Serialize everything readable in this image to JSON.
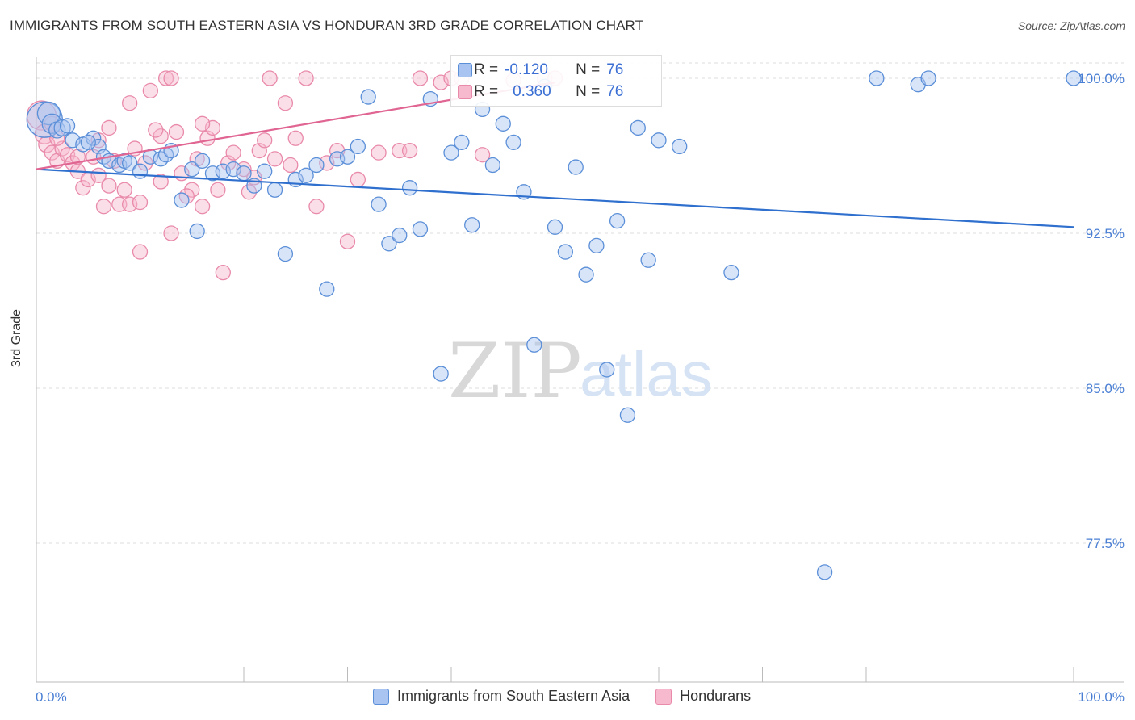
{
  "title": "IMMIGRANTS FROM SOUTH EASTERN ASIA VS HONDURAN 3RD GRADE CORRELATION CHART",
  "source": "Source: ZipAtlas.com",
  "watermark": {
    "zip": "ZIP",
    "atlas": "atlas"
  },
  "colors": {
    "blue_fill": "#a9c4f0",
    "blue_stroke": "#5b8fd8",
    "blue_line": "#2f6fce",
    "pink_fill": "#f6b9cd",
    "pink_stroke": "#e98aab",
    "pink_line": "#e06592",
    "axis_text": "#4a7fd4",
    "grid": "#dddddd"
  },
  "stats": {
    "series1": {
      "r_label": "R =",
      "r_value": "-0.120",
      "n_label": "N =",
      "n_value": "76"
    },
    "series2": {
      "r_label": "R =",
      "r_value": "0.360",
      "n_label": "N =",
      "n_value": "76"
    }
  },
  "legend": {
    "series1": "Immigrants from South Eastern Asia",
    "series2": "Hondurans"
  },
  "chart_data": {
    "type": "scatter",
    "xlabel": "",
    "ylabel": "3rd Grade",
    "xlim": [
      0,
      100
    ],
    "ylim": [
      70.0,
      100.8
    ],
    "x_tick_labels": [
      "0.0%",
      "100.0%"
    ],
    "y_ticks": [
      100.0,
      92.5,
      85.0,
      77.5
    ],
    "y_tick_labels": [
      "100.0%",
      "92.5%",
      "85.0%",
      "77.5%"
    ],
    "grid": "horizontal dashed",
    "series": [
      {
        "name": "Immigrants from South Eastern Asia",
        "trend": {
          "x": [
            0,
            100
          ],
          "y": [
            95.6,
            92.8
          ]
        },
        "points": [
          [
            0.8,
            98.0,
            22
          ],
          [
            1.2,
            98.3,
            14
          ],
          [
            1.5,
            97.8,
            12
          ],
          [
            2.0,
            97.5,
            10
          ],
          [
            2.5,
            97.6,
            10
          ],
          [
            3.5,
            97.0,
            9
          ],
          [
            4.5,
            96.8,
            9
          ],
          [
            5.5,
            97.1,
            9
          ],
          [
            6.0,
            96.7,
            9
          ],
          [
            6.5,
            96.2,
            9
          ],
          [
            7.0,
            96.0,
            9
          ],
          [
            8.0,
            95.8,
            9
          ],
          [
            8.5,
            96.0,
            9
          ],
          [
            9.0,
            95.9,
            9
          ],
          [
            10.0,
            95.5,
            9
          ],
          [
            11.0,
            96.2,
            9
          ],
          [
            12.0,
            96.1,
            9
          ],
          [
            12.5,
            96.3,
            9
          ],
          [
            13.0,
            96.5,
            9
          ],
          [
            14.0,
            94.1,
            9
          ],
          [
            15.0,
            95.6,
            9
          ],
          [
            15.5,
            92.6,
            9
          ],
          [
            16.0,
            96.0,
            9
          ],
          [
            17.0,
            95.4,
            9
          ],
          [
            18.0,
            95.5,
            9
          ],
          [
            19.0,
            95.6,
            9
          ],
          [
            20.0,
            95.4,
            9
          ],
          [
            21.0,
            94.8,
            9
          ],
          [
            22.0,
            95.5,
            9
          ],
          [
            23.0,
            94.6,
            9
          ],
          [
            24.0,
            91.5,
            9
          ],
          [
            25.0,
            95.1,
            9
          ],
          [
            26.0,
            95.3,
            9
          ],
          [
            27.0,
            95.8,
            9
          ],
          [
            28.0,
            89.8,
            9
          ],
          [
            29.0,
            96.1,
            9
          ],
          [
            30.0,
            96.2,
            9
          ],
          [
            31.0,
            96.7,
            9
          ],
          [
            32.0,
            99.1,
            9
          ],
          [
            33.0,
            93.9,
            9
          ],
          [
            34.0,
            92.0,
            9
          ],
          [
            35.0,
            92.4,
            9
          ],
          [
            36.0,
            94.7,
            9
          ],
          [
            37.0,
            92.7,
            9
          ],
          [
            38.0,
            99.0,
            9
          ],
          [
            39.0,
            85.7,
            9
          ],
          [
            40.0,
            96.4,
            9
          ],
          [
            41.0,
            96.9,
            9
          ],
          [
            42.0,
            92.9,
            9
          ],
          [
            43.0,
            98.5,
            9
          ],
          [
            44.0,
            95.8,
            9
          ],
          [
            45.0,
            97.8,
            9
          ],
          [
            46.0,
            96.9,
            9
          ],
          [
            47.0,
            94.5,
            9
          ],
          [
            48.0,
            87.1,
            9
          ],
          [
            49.0,
            99.6,
            9
          ],
          [
            50.0,
            92.8,
            9
          ],
          [
            51.0,
            91.6,
            9
          ],
          [
            52.0,
            95.7,
            9
          ],
          [
            53.0,
            90.5,
            9
          ],
          [
            54.0,
            91.9,
            9
          ],
          [
            55.0,
            85.9,
            9
          ],
          [
            56.0,
            93.1,
            9
          ],
          [
            57.0,
            83.7,
            9
          ],
          [
            58.0,
            97.6,
            9
          ],
          [
            59.0,
            91.2,
            9
          ],
          [
            60.0,
            97.0,
            9
          ],
          [
            62.0,
            96.7,
            9
          ],
          [
            67.0,
            90.6,
            9
          ],
          [
            76.0,
            76.1,
            9
          ],
          [
            81.0,
            100.0,
            9
          ],
          [
            85.0,
            99.7,
            9
          ],
          [
            86.0,
            100.0,
            9
          ],
          [
            100.0,
            100.0,
            9
          ],
          [
            3.0,
            97.7,
            9
          ],
          [
            5.0,
            96.9,
            9
          ]
        ]
      },
      {
        "name": "Hondurans",
        "trend": {
          "x": [
            0,
            50
          ],
          "y": [
            95.6,
            99.8
          ]
        },
        "points": [
          [
            0.5,
            98.2,
            18
          ],
          [
            0.8,
            97.3,
            12
          ],
          [
            1.0,
            96.8,
            10
          ],
          [
            1.5,
            96.4,
            9
          ],
          [
            2.0,
            96.0,
            9
          ],
          [
            2.5,
            96.6,
            9
          ],
          [
            3.0,
            96.3,
            9
          ],
          [
            3.5,
            95.9,
            9
          ],
          [
            4.0,
            95.5,
            9
          ],
          [
            4.5,
            94.7,
            9
          ],
          [
            5.0,
            95.1,
            9
          ],
          [
            5.5,
            96.2,
            9
          ],
          [
            6.0,
            95.3,
            9
          ],
          [
            6.5,
            93.8,
            9
          ],
          [
            7.0,
            94.8,
            9
          ],
          [
            7.5,
            96.0,
            9
          ],
          [
            8.0,
            93.9,
            9
          ],
          [
            8.5,
            94.6,
            9
          ],
          [
            9.0,
            93.9,
            9
          ],
          [
            9.5,
            96.6,
            9
          ],
          [
            10.0,
            91.6,
            9
          ],
          [
            10.5,
            95.9,
            9
          ],
          [
            11.0,
            99.4,
            9
          ],
          [
            12.0,
            97.2,
            9
          ],
          [
            12.5,
            100.0,
            9
          ],
          [
            13.0,
            92.5,
            9
          ],
          [
            13.5,
            97.4,
            9
          ],
          [
            14.0,
            95.4,
            9
          ],
          [
            15.0,
            94.6,
            9
          ],
          [
            15.5,
            96.1,
            9
          ],
          [
            16.0,
            93.8,
            9
          ],
          [
            16.5,
            97.1,
            9
          ],
          [
            17.0,
            97.6,
            9
          ],
          [
            17.5,
            94.6,
            9
          ],
          [
            18.0,
            90.6,
            9
          ],
          [
            18.5,
            95.9,
            9
          ],
          [
            19.0,
            96.4,
            9
          ],
          [
            20.0,
            95.6,
            9
          ],
          [
            20.5,
            94.5,
            9
          ],
          [
            21.0,
            95.2,
            9
          ],
          [
            21.5,
            96.5,
            9
          ],
          [
            22.0,
            97.0,
            9
          ],
          [
            22.5,
            100.0,
            9
          ],
          [
            23.0,
            96.1,
            9
          ],
          [
            24.0,
            98.8,
            9
          ],
          [
            24.5,
            95.8,
            9
          ],
          [
            25.0,
            97.1,
            9
          ],
          [
            26.0,
            100.0,
            9
          ],
          [
            27.0,
            93.8,
            9
          ],
          [
            28.0,
            95.9,
            9
          ],
          [
            29.0,
            96.5,
            9
          ],
          [
            30.0,
            92.1,
            9
          ],
          [
            31.0,
            95.1,
            9
          ],
          [
            33.0,
            96.4,
            9
          ],
          [
            35.0,
            96.5,
            9
          ],
          [
            36.0,
            96.5,
            9
          ],
          [
            37.0,
            100.0,
            9
          ],
          [
            39.0,
            99.8,
            9
          ],
          [
            40.0,
            100.0,
            9
          ],
          [
            41.0,
            100.0,
            9
          ],
          [
            43.0,
            96.3,
            9
          ],
          [
            46.0,
            99.9,
            9
          ],
          [
            49.0,
            100.0,
            9
          ],
          [
            50.0,
            100.0,
            9
          ],
          [
            6.0,
            97.0,
            9
          ],
          [
            7.0,
            97.6,
            9
          ],
          [
            9.0,
            98.8,
            9
          ],
          [
            10.0,
            94.0,
            9
          ],
          [
            11.5,
            97.5,
            9
          ],
          [
            14.5,
            94.3,
            9
          ],
          [
            16.0,
            97.8,
            9
          ],
          [
            13.0,
            100.0,
            9
          ],
          [
            12.0,
            95.0,
            9
          ],
          [
            1.5,
            97.8,
            9
          ],
          [
            2.0,
            97.1,
            9
          ],
          [
            4.0,
            96.2,
            9
          ]
        ]
      }
    ]
  }
}
